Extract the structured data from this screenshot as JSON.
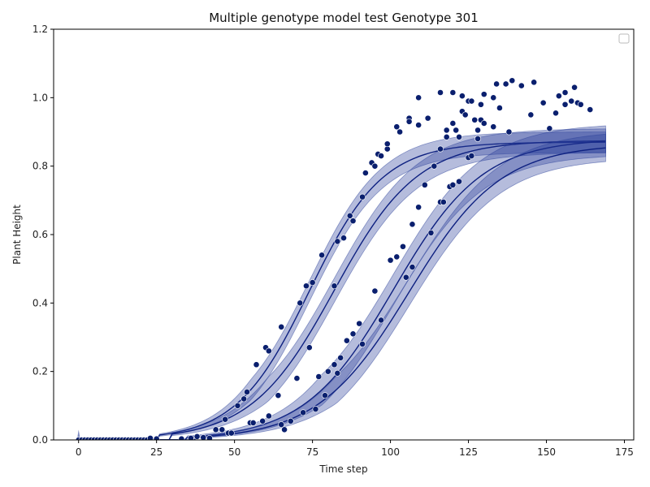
{
  "chart_data": {
    "type": "scatter",
    "title": "Multiple genotype model test Genotype 301",
    "xlabel": "Time step",
    "ylabel": "Plant Height",
    "xlim": [
      -8,
      178
    ],
    "ylim": [
      0,
      1.2
    ],
    "xticks": [
      "0",
      "25",
      "50",
      "75",
      "100",
      "125",
      "150",
      "175"
    ],
    "yticks": [
      "0.0",
      "0.2",
      "0.4",
      "0.6",
      "0.8",
      "1.0",
      "1.2"
    ],
    "grid": false,
    "legend": "top-right, empty",
    "colors": {
      "points": "#0a1f6e",
      "line": "#0d2080",
      "band": "#2a3f9a"
    },
    "fitted_curves": [
      {
        "midpoint": 74,
        "rate": 0.085,
        "asymptote": 0.87,
        "onset": 46,
        "band": 0.03
      },
      {
        "midpoint": 82,
        "rate": 0.075,
        "asymptote": 0.875,
        "onset": 50,
        "band": 0.035
      },
      {
        "midpoint": 101,
        "rate": 0.07,
        "asymptote": 0.88,
        "onset": 55,
        "band": 0.045
      },
      {
        "midpoint": 106,
        "rate": 0.068,
        "asymptote": 0.865,
        "onset": 58,
        "band": 0.04
      }
    ],
    "points": [
      [
        0,
        0.0
      ],
      [
        1,
        0.0
      ],
      [
        2,
        0.0
      ],
      [
        3,
        0.0
      ],
      [
        4,
        0.0
      ],
      [
        5,
        0.0
      ],
      [
        6,
        0.0
      ],
      [
        7,
        0.0
      ],
      [
        8,
        0.0
      ],
      [
        9,
        0.0
      ],
      [
        10,
        0.0
      ],
      [
        11,
        0.0
      ],
      [
        12,
        0.0
      ],
      [
        13,
        0.0
      ],
      [
        14,
        0.0
      ],
      [
        15,
        0.0
      ],
      [
        16,
        0.0
      ],
      [
        17,
        0.0
      ],
      [
        18,
        0.0
      ],
      [
        19,
        0.0
      ],
      [
        20,
        0.0
      ],
      [
        21,
        0.0
      ],
      [
        22,
        0.0
      ],
      [
        23,
        0.005
      ],
      [
        25,
        0.003
      ],
      [
        33,
        0.003
      ],
      [
        36,
        0.005
      ],
      [
        38,
        0.01
      ],
      [
        40,
        0.007
      ],
      [
        42,
        0.005
      ],
      [
        44,
        0.03
      ],
      [
        46,
        0.03
      ],
      [
        47,
        0.06
      ],
      [
        48,
        0.02
      ],
      [
        49,
        0.02
      ],
      [
        51,
        0.1
      ],
      [
        53,
        0.12
      ],
      [
        54,
        0.14
      ],
      [
        55,
        0.05
      ],
      [
        56,
        0.05
      ],
      [
        57,
        0.22
      ],
      [
        59,
        0.055
      ],
      [
        60,
        0.27
      ],
      [
        61,
        0.26
      ],
      [
        61,
        0.07
      ],
      [
        64,
        0.13
      ],
      [
        65,
        0.33
      ],
      [
        65,
        0.045
      ],
      [
        66,
        0.03
      ],
      [
        68,
        0.055
      ],
      [
        70,
        0.18
      ],
      [
        71,
        0.4
      ],
      [
        72,
        0.08
      ],
      [
        73,
        0.45
      ],
      [
        74,
        0.27
      ],
      [
        75,
        0.46
      ],
      [
        76,
        0.09
      ],
      [
        77,
        0.185
      ],
      [
        78,
        0.54
      ],
      [
        79,
        0.13
      ],
      [
        80,
        0.2
      ],
      [
        82,
        0.22
      ],
      [
        82,
        0.45
      ],
      [
        83,
        0.195
      ],
      [
        83,
        0.58
      ],
      [
        84,
        0.24
      ],
      [
        85,
        0.59
      ],
      [
        86,
        0.29
      ],
      [
        87,
        0.655
      ],
      [
        88,
        0.64
      ],
      [
        88,
        0.31
      ],
      [
        90,
        0.34
      ],
      [
        91,
        0.71
      ],
      [
        91,
        0.28
      ],
      [
        92,
        0.78
      ],
      [
        94,
        0.81
      ],
      [
        95,
        0.8
      ],
      [
        95,
        0.435
      ],
      [
        96,
        0.835
      ],
      [
        97,
        0.83
      ],
      [
        97,
        0.35
      ],
      [
        99,
        0.85
      ],
      [
        99,
        0.865
      ],
      [
        100,
        0.525
      ],
      [
        102,
        0.915
      ],
      [
        102,
        0.535
      ],
      [
        103,
        0.9
      ],
      [
        104,
        0.565
      ],
      [
        105,
        0.475
      ],
      [
        106,
        0.94
      ],
      [
        106,
        0.93
      ],
      [
        107,
        0.63
      ],
      [
        107,
        0.505
      ],
      [
        109,
        1.0
      ],
      [
        109,
        0.92
      ],
      [
        109,
        0.68
      ],
      [
        111,
        0.745
      ],
      [
        112,
        0.94
      ],
      [
        113,
        0.605
      ],
      [
        114,
        0.8
      ],
      [
        116,
        1.015
      ],
      [
        116,
        0.85
      ],
      [
        116,
        0.695
      ],
      [
        117,
        0.695
      ],
      [
        118,
        0.905
      ],
      [
        118,
        0.885
      ],
      [
        119,
        0.74
      ],
      [
        120,
        1.015
      ],
      [
        120,
        0.925
      ],
      [
        120,
        0.745
      ],
      [
        121,
        0.905
      ],
      [
        122,
        0.885
      ],
      [
        122,
        0.755
      ],
      [
        123,
        1.005
      ],
      [
        123,
        0.96
      ],
      [
        124,
        0.95
      ],
      [
        125,
        0.99
      ],
      [
        125,
        0.825
      ],
      [
        126,
        0.99
      ],
      [
        126,
        0.83
      ],
      [
        127,
        0.935
      ],
      [
        128,
        0.905
      ],
      [
        128,
        0.88
      ],
      [
        129,
        0.98
      ],
      [
        129,
        0.935
      ],
      [
        130,
        1.01
      ],
      [
        130,
        0.925
      ],
      [
        133,
        0.915
      ],
      [
        133,
        1.0
      ],
      [
        134,
        1.04
      ],
      [
        135,
        0.97
      ],
      [
        137,
        1.04
      ],
      [
        138,
        0.9
      ],
      [
        139,
        1.05
      ],
      [
        142,
        1.035
      ],
      [
        145,
        0.95
      ],
      [
        146,
        1.045
      ],
      [
        149,
        0.985
      ],
      [
        151,
        0.91
      ],
      [
        153,
        0.955
      ],
      [
        154,
        1.005
      ],
      [
        156,
        1.015
      ],
      [
        156,
        0.98
      ],
      [
        158,
        0.99
      ],
      [
        159,
        1.03
      ],
      [
        160,
        0.985
      ],
      [
        161,
        0.98
      ],
      [
        164,
        0.965
      ]
    ]
  }
}
